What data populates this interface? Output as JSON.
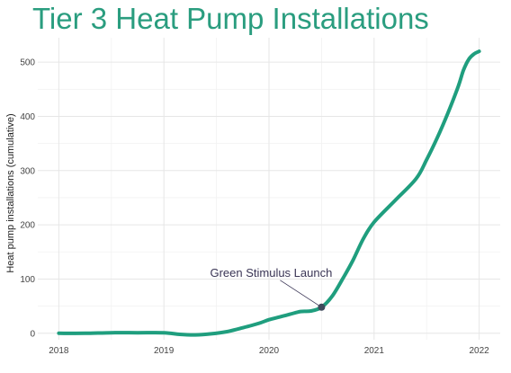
{
  "chart_data": {
    "type": "line",
    "title": "Tier 3 Heat Pump Installations",
    "xlabel": "",
    "ylabel": "Heat pump installations (cumulative)",
    "xlim": [
      2017.8,
      2022.2
    ],
    "ylim": [
      -12,
      545
    ],
    "x_ticks": [
      2018,
      2019,
      2020,
      2021,
      2022
    ],
    "y_ticks": [
      0,
      100,
      200,
      300,
      400,
      500
    ],
    "grid": true,
    "legend": "none",
    "colors": {
      "line": "#1f9e7e",
      "title": "#2a9d7f",
      "grid": "#e6e6e6",
      "marker": "#3f4a5c",
      "annotation": "#3a3555"
    },
    "series": [
      {
        "x": [
          2018.0,
          2018.25,
          2018.5,
          2018.75,
          2019.0,
          2019.15,
          2019.3,
          2019.45,
          2019.6,
          2019.75,
          2019.9,
          2020.0,
          2020.1,
          2020.2,
          2020.3,
          2020.4,
          2020.5,
          2020.6,
          2020.7,
          2020.8,
          2020.9,
          2021.0,
          2021.2,
          2021.4,
          2021.5,
          2021.6,
          2021.7,
          2021.8,
          2021.85,
          2021.9,
          2021.95,
          2022.0
        ],
        "y": [
          0,
          0,
          1,
          1,
          1,
          -2,
          -3,
          -1,
          3,
          10,
          18,
          25,
          30,
          35,
          40,
          41,
          48,
          68,
          100,
          135,
          175,
          205,
          245,
          285,
          320,
          360,
          405,
          455,
          485,
          505,
          515,
          520
        ]
      }
    ],
    "annotations": [
      {
        "text": "Green Stimulus Launch",
        "x": 2020.5,
        "y": 48
      }
    ]
  }
}
